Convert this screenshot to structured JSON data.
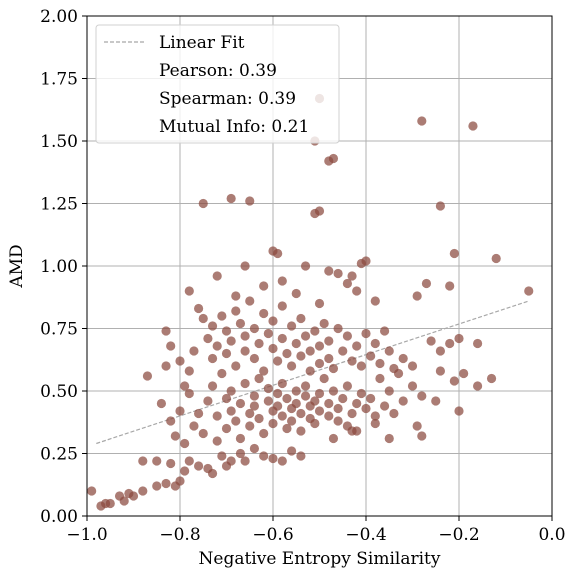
{
  "chart_data": {
    "type": "scatter",
    "title": "",
    "xlabel": "Negative Entropy Similarity",
    "ylabel": "AMD",
    "xlim": [
      -1.0,
      0.0
    ],
    "ylim": [
      0.0,
      2.0
    ],
    "xticks": [
      -1.0,
      -0.8,
      -0.6,
      -0.4,
      -0.2,
      0.0
    ],
    "xtick_labels": [
      "−1.0",
      "−0.8",
      "−0.6",
      "−0.4",
      "−0.2",
      "0.0"
    ],
    "yticks": [
      0.0,
      0.25,
      0.5,
      0.75,
      1.0,
      1.25,
      1.5,
      1.75,
      2.0
    ],
    "ytick_labels": [
      "0.00",
      "0.25",
      "0.50",
      "0.75",
      "1.00",
      "1.25",
      "1.50",
      "1.75",
      "2.00"
    ],
    "grid": true,
    "point_color": "#8b4a3e",
    "fit_color": "#a8a8a8",
    "legend": {
      "placement": "top-left",
      "entries": [
        "Linear Fit",
        "Pearson: 0.39",
        "Spearman: 0.39",
        "Mutual Info: 0.21"
      ]
    },
    "fit_line": {
      "x": [
        -0.98,
        -0.05
      ],
      "y": [
        0.29,
        0.86
      ]
    },
    "points": [
      [
        -0.99,
        0.1
      ],
      [
        -0.97,
        0.04
      ],
      [
        -0.96,
        0.05
      ],
      [
        -0.95,
        0.05
      ],
      [
        -0.93,
        0.08
      ],
      [
        -0.92,
        0.06
      ],
      [
        -0.91,
        0.09
      ],
      [
        -0.9,
        0.08
      ],
      [
        -0.88,
        0.1
      ],
      [
        -0.85,
        0.12
      ],
      [
        -0.83,
        0.13
      ],
      [
        -0.81,
        0.12
      ],
      [
        -0.8,
        0.14
      ],
      [
        -0.79,
        0.18
      ],
      [
        -0.88,
        0.22
      ],
      [
        -0.85,
        0.22
      ],
      [
        -0.82,
        0.21
      ],
      [
        -0.78,
        0.22
      ],
      [
        -0.76,
        0.2
      ],
      [
        -0.74,
        0.19
      ],
      [
        -0.73,
        0.17
      ],
      [
        -0.71,
        0.24
      ],
      [
        -0.7,
        0.2
      ],
      [
        -0.69,
        0.22
      ],
      [
        -0.67,
        0.25
      ],
      [
        -0.66,
        0.22
      ],
      [
        -0.64,
        0.27
      ],
      [
        -0.62,
        0.24
      ],
      [
        -0.6,
        0.23
      ],
      [
        -0.58,
        0.22
      ],
      [
        -0.56,
        0.26
      ],
      [
        -0.54,
        0.24
      ],
      [
        -0.87,
        0.56
      ],
      [
        -0.84,
        0.45
      ],
      [
        -0.83,
        0.6
      ],
      [
        -0.82,
        0.38
      ],
      [
        -0.81,
        0.32
      ],
      [
        -0.8,
        0.42
      ],
      [
        -0.79,
        0.52
      ],
      [
        -0.79,
        0.29
      ],
      [
        -0.78,
        0.49
      ],
      [
        -0.77,
        0.36
      ],
      [
        -0.76,
        0.41
      ],
      [
        -0.75,
        0.33
      ],
      [
        -0.74,
        0.46
      ],
      [
        -0.73,
        0.52
      ],
      [
        -0.72,
        0.4
      ],
      [
        -0.72,
        0.3
      ],
      [
        -0.71,
        0.57
      ],
      [
        -0.7,
        0.47
      ],
      [
        -0.7,
        0.35
      ],
      [
        -0.69,
        0.42
      ],
      [
        -0.69,
        0.5
      ],
      [
        -0.68,
        0.38
      ],
      [
        -0.67,
        0.45
      ],
      [
        -0.67,
        0.31
      ],
      [
        -0.66,
        0.53
      ],
      [
        -0.65,
        0.41
      ],
      [
        -0.65,
        0.36
      ],
      [
        -0.64,
        0.48
      ],
      [
        -0.64,
        0.44
      ],
      [
        -0.63,
        0.55
      ],
      [
        -0.63,
        0.39
      ],
      [
        -0.62,
        0.33
      ],
      [
        -0.61,
        0.46
      ],
      [
        -0.61,
        0.51
      ],
      [
        -0.6,
        0.42
      ],
      [
        -0.6,
        0.37
      ],
      [
        -0.59,
        0.49
      ],
      [
        -0.59,
        0.44
      ],
      [
        -0.58,
        0.4
      ],
      [
        -0.58,
        0.53
      ],
      [
        -0.57,
        0.35
      ],
      [
        -0.57,
        0.47
      ],
      [
        -0.56,
        0.43
      ],
      [
        -0.56,
        0.38
      ],
      [
        -0.55,
        0.5
      ],
      [
        -0.55,
        0.45
      ],
      [
        -0.54,
        0.41
      ],
      [
        -0.54,
        0.34
      ],
      [
        -0.53,
        0.48
      ],
      [
        -0.53,
        0.52
      ],
      [
        -0.52,
        0.39
      ],
      [
        -0.52,
        0.44
      ],
      [
        -0.51,
        0.46
      ],
      [
        -0.51,
        0.37
      ],
      [
        -0.5,
        0.42
      ],
      [
        -0.5,
        0.49
      ],
      [
        -0.49,
        0.55
      ],
      [
        -0.48,
        0.4
      ],
      [
        -0.48,
        0.45
      ],
      [
        -0.47,
        0.5
      ],
      [
        -0.46,
        0.38
      ],
      [
        -0.46,
        0.43
      ],
      [
        -0.45,
        0.47
      ],
      [
        -0.44,
        0.36
      ],
      [
        -0.44,
        0.52
      ],
      [
        -0.43,
        0.41
      ],
      [
        -0.42,
        0.45
      ],
      [
        -0.42,
        0.34
      ],
      [
        -0.41,
        0.49
      ],
      [
        -0.4,
        0.43
      ],
      [
        -0.39,
        0.47
      ],
      [
        -0.38,
        0.4
      ],
      [
        -0.37,
        0.55
      ],
      [
        -0.36,
        0.44
      ],
      [
        -0.35,
        0.5
      ],
      [
        -0.34,
        0.41
      ],
      [
        -0.33,
        0.57
      ],
      [
        -0.32,
        0.46
      ],
      [
        -0.3,
        0.52
      ],
      [
        -0.28,
        0.48
      ],
      [
        -0.29,
        0.36
      ],
      [
        -0.28,
        0.32
      ],
      [
        -0.38,
        0.37
      ],
      [
        -0.35,
        0.31
      ],
      [
        -0.43,
        0.34
      ],
      [
        -0.47,
        0.31
      ],
      [
        -0.83,
        0.74
      ],
      [
        -0.82,
        0.68
      ],
      [
        -0.8,
        0.62
      ],
      [
        -0.78,
        0.58
      ],
      [
        -0.77,
        0.66
      ],
      [
        -0.76,
        0.83
      ],
      [
        -0.75,
        0.79
      ],
      [
        -0.74,
        0.71
      ],
      [
        -0.73,
        0.76
      ],
      [
        -0.73,
        0.63
      ],
      [
        -0.72,
        0.68
      ],
      [
        -0.71,
        0.8
      ],
      [
        -0.7,
        0.74
      ],
      [
        -0.7,
        0.65
      ],
      [
        -0.69,
        0.7
      ],
      [
        -0.68,
        0.82
      ],
      [
        -0.68,
        0.6
      ],
      [
        -0.67,
        0.77
      ],
      [
        -0.66,
        0.66
      ],
      [
        -0.66,
        0.72
      ],
      [
        -0.65,
        0.86
      ],
      [
        -0.64,
        0.63
      ],
      [
        -0.64,
        0.75
      ],
      [
        -0.63,
        0.69
      ],
      [
        -0.62,
        0.81
      ],
      [
        -0.62,
        0.58
      ],
      [
        -0.61,
        0.73
      ],
      [
        -0.6,
        0.67
      ],
      [
        -0.6,
        0.78
      ],
      [
        -0.59,
        0.62
      ],
      [
        -0.58,
        0.71
      ],
      [
        -0.58,
        0.84
      ],
      [
        -0.57,
        0.65
      ],
      [
        -0.56,
        0.76
      ],
      [
        -0.56,
        0.6
      ],
      [
        -0.55,
        0.69
      ],
      [
        -0.54,
        0.79
      ],
      [
        -0.54,
        0.64
      ],
      [
        -0.53,
        0.72
      ],
      [
        -0.52,
        0.66
      ],
      [
        -0.52,
        0.58
      ],
      [
        -0.51,
        0.74
      ],
      [
        -0.5,
        0.68
      ],
      [
        -0.5,
        0.61
      ],
      [
        -0.49,
        0.77
      ],
      [
        -0.48,
        0.63
      ],
      [
        -0.48,
        0.7
      ],
      [
        -0.47,
        0.59
      ],
      [
        -0.46,
        0.75
      ],
      [
        -0.45,
        0.66
      ],
      [
        -0.44,
        0.72
      ],
      [
        -0.43,
        0.62
      ],
      [
        -0.42,
        0.68
      ],
      [
        -0.41,
        0.6
      ],
      [
        -0.4,
        0.73
      ],
      [
        -0.39,
        0.64
      ],
      [
        -0.38,
        0.69
      ],
      [
        -0.37,
        0.61
      ],
      [
        -0.36,
        0.74
      ],
      [
        -0.35,
        0.66
      ],
      [
        -0.34,
        0.59
      ],
      [
        -0.32,
        0.63
      ],
      [
        -0.3,
        0.6
      ],
      [
        -0.26,
        0.7
      ],
      [
        -0.24,
        0.66
      ],
      [
        -0.22,
        0.69
      ],
      [
        -0.2,
        0.71
      ],
      [
        -0.16,
        0.69
      ],
      [
        -0.19,
        0.57
      ],
      [
        -0.21,
        0.54
      ],
      [
        -0.24,
        0.58
      ],
      [
        -0.78,
        0.9
      ],
      [
        -0.72,
        0.96
      ],
      [
        -0.68,
        0.88
      ],
      [
        -0.62,
        0.92
      ],
      [
        -0.58,
        0.94
      ],
      [
        -0.55,
        0.89
      ],
      [
        -0.5,
        0.85
      ],
      [
        -0.46,
        0.97
      ],
      [
        -0.42,
        0.9
      ],
      [
        -0.38,
        0.86
      ],
      [
        -0.41,
        1.01
      ],
      [
        -0.4,
        1.02
      ],
      [
        -0.43,
        0.96
      ],
      [
        -0.44,
        0.93
      ],
      [
        -0.29,
        0.88
      ],
      [
        -0.27,
        0.93
      ],
      [
        -0.22,
        0.92
      ],
      [
        -0.21,
        1.05
      ],
      [
        -0.12,
        1.03
      ],
      [
        -0.05,
        0.9
      ],
      [
        -0.13,
        0.55
      ],
      [
        -0.2,
        0.42
      ],
      [
        -0.16,
        0.52
      ],
      [
        -0.25,
        0.46
      ],
      [
        -0.66,
        1.0
      ],
      [
        -0.6,
        1.06
      ],
      [
        -0.59,
        1.05
      ],
      [
        -0.53,
        1.0
      ],
      [
        -0.48,
        0.98
      ],
      [
        -0.75,
        1.25
      ],
      [
        -0.69,
        1.27
      ],
      [
        -0.65,
        1.26
      ],
      [
        -0.51,
        1.21
      ],
      [
        -0.5,
        1.22
      ],
      [
        -0.24,
        1.24
      ],
      [
        -0.48,
        1.42
      ],
      [
        -0.47,
        1.43
      ],
      [
        -0.51,
        1.5
      ],
      [
        -0.5,
        1.67
      ],
      [
        -0.28,
        1.58
      ],
      [
        -0.17,
        1.56
      ]
    ]
  }
}
